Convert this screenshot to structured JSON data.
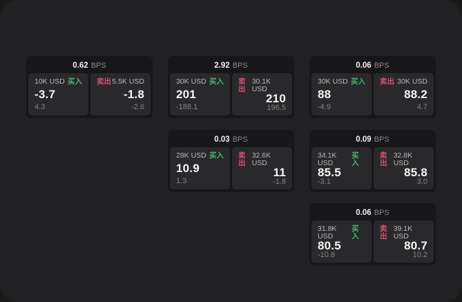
{
  "labels": {
    "bps": "BPS",
    "buy": "买入",
    "sell": "卖出"
  },
  "colors": {
    "buy_green": "#40b96e",
    "sell_red": "#d9506b",
    "card_bg": "#17171a",
    "tile_bg": "#29292c",
    "window_bg": "#212123"
  },
  "cards": [
    {
      "bps": "0.62",
      "buy": {
        "size": "10K USD",
        "value": "-3.7",
        "delta": "4.3"
      },
      "sell": {
        "size": "5.5K USD",
        "value": "-1.8",
        "delta": "-2.6"
      }
    },
    {
      "bps": "2.92",
      "buy": {
        "size": "30K USD",
        "value": "201",
        "delta": "-188.1"
      },
      "sell": {
        "size": "30.1K USD",
        "value": "210",
        "delta": "196.5"
      }
    },
    {
      "bps": "0.06",
      "buy": {
        "size": "30K USD",
        "value": "88",
        "delta": "-4.9"
      },
      "sell": {
        "size": "30K USD",
        "value": "88.2",
        "delta": "4.7"
      }
    },
    {
      "bps": "0.03",
      "buy": {
        "size": "28K USD",
        "value": "10.9",
        "delta": "1.3"
      },
      "sell": {
        "size": "32.6K USD",
        "value": "11",
        "delta": "-1.8"
      }
    },
    {
      "bps": "0.09",
      "buy": {
        "size": "34.1K USD",
        "value": "85.5",
        "delta": "-3.1"
      },
      "sell": {
        "size": "32.8K USD",
        "value": "85.8",
        "delta": "3.0"
      }
    },
    {
      "bps": "0.06",
      "buy": {
        "size": "31.8K USD",
        "value": "80.5",
        "delta": "-10.8"
      },
      "sell": {
        "size": "39.1K USD",
        "value": "80.7",
        "delta": "10.2"
      }
    }
  ]
}
